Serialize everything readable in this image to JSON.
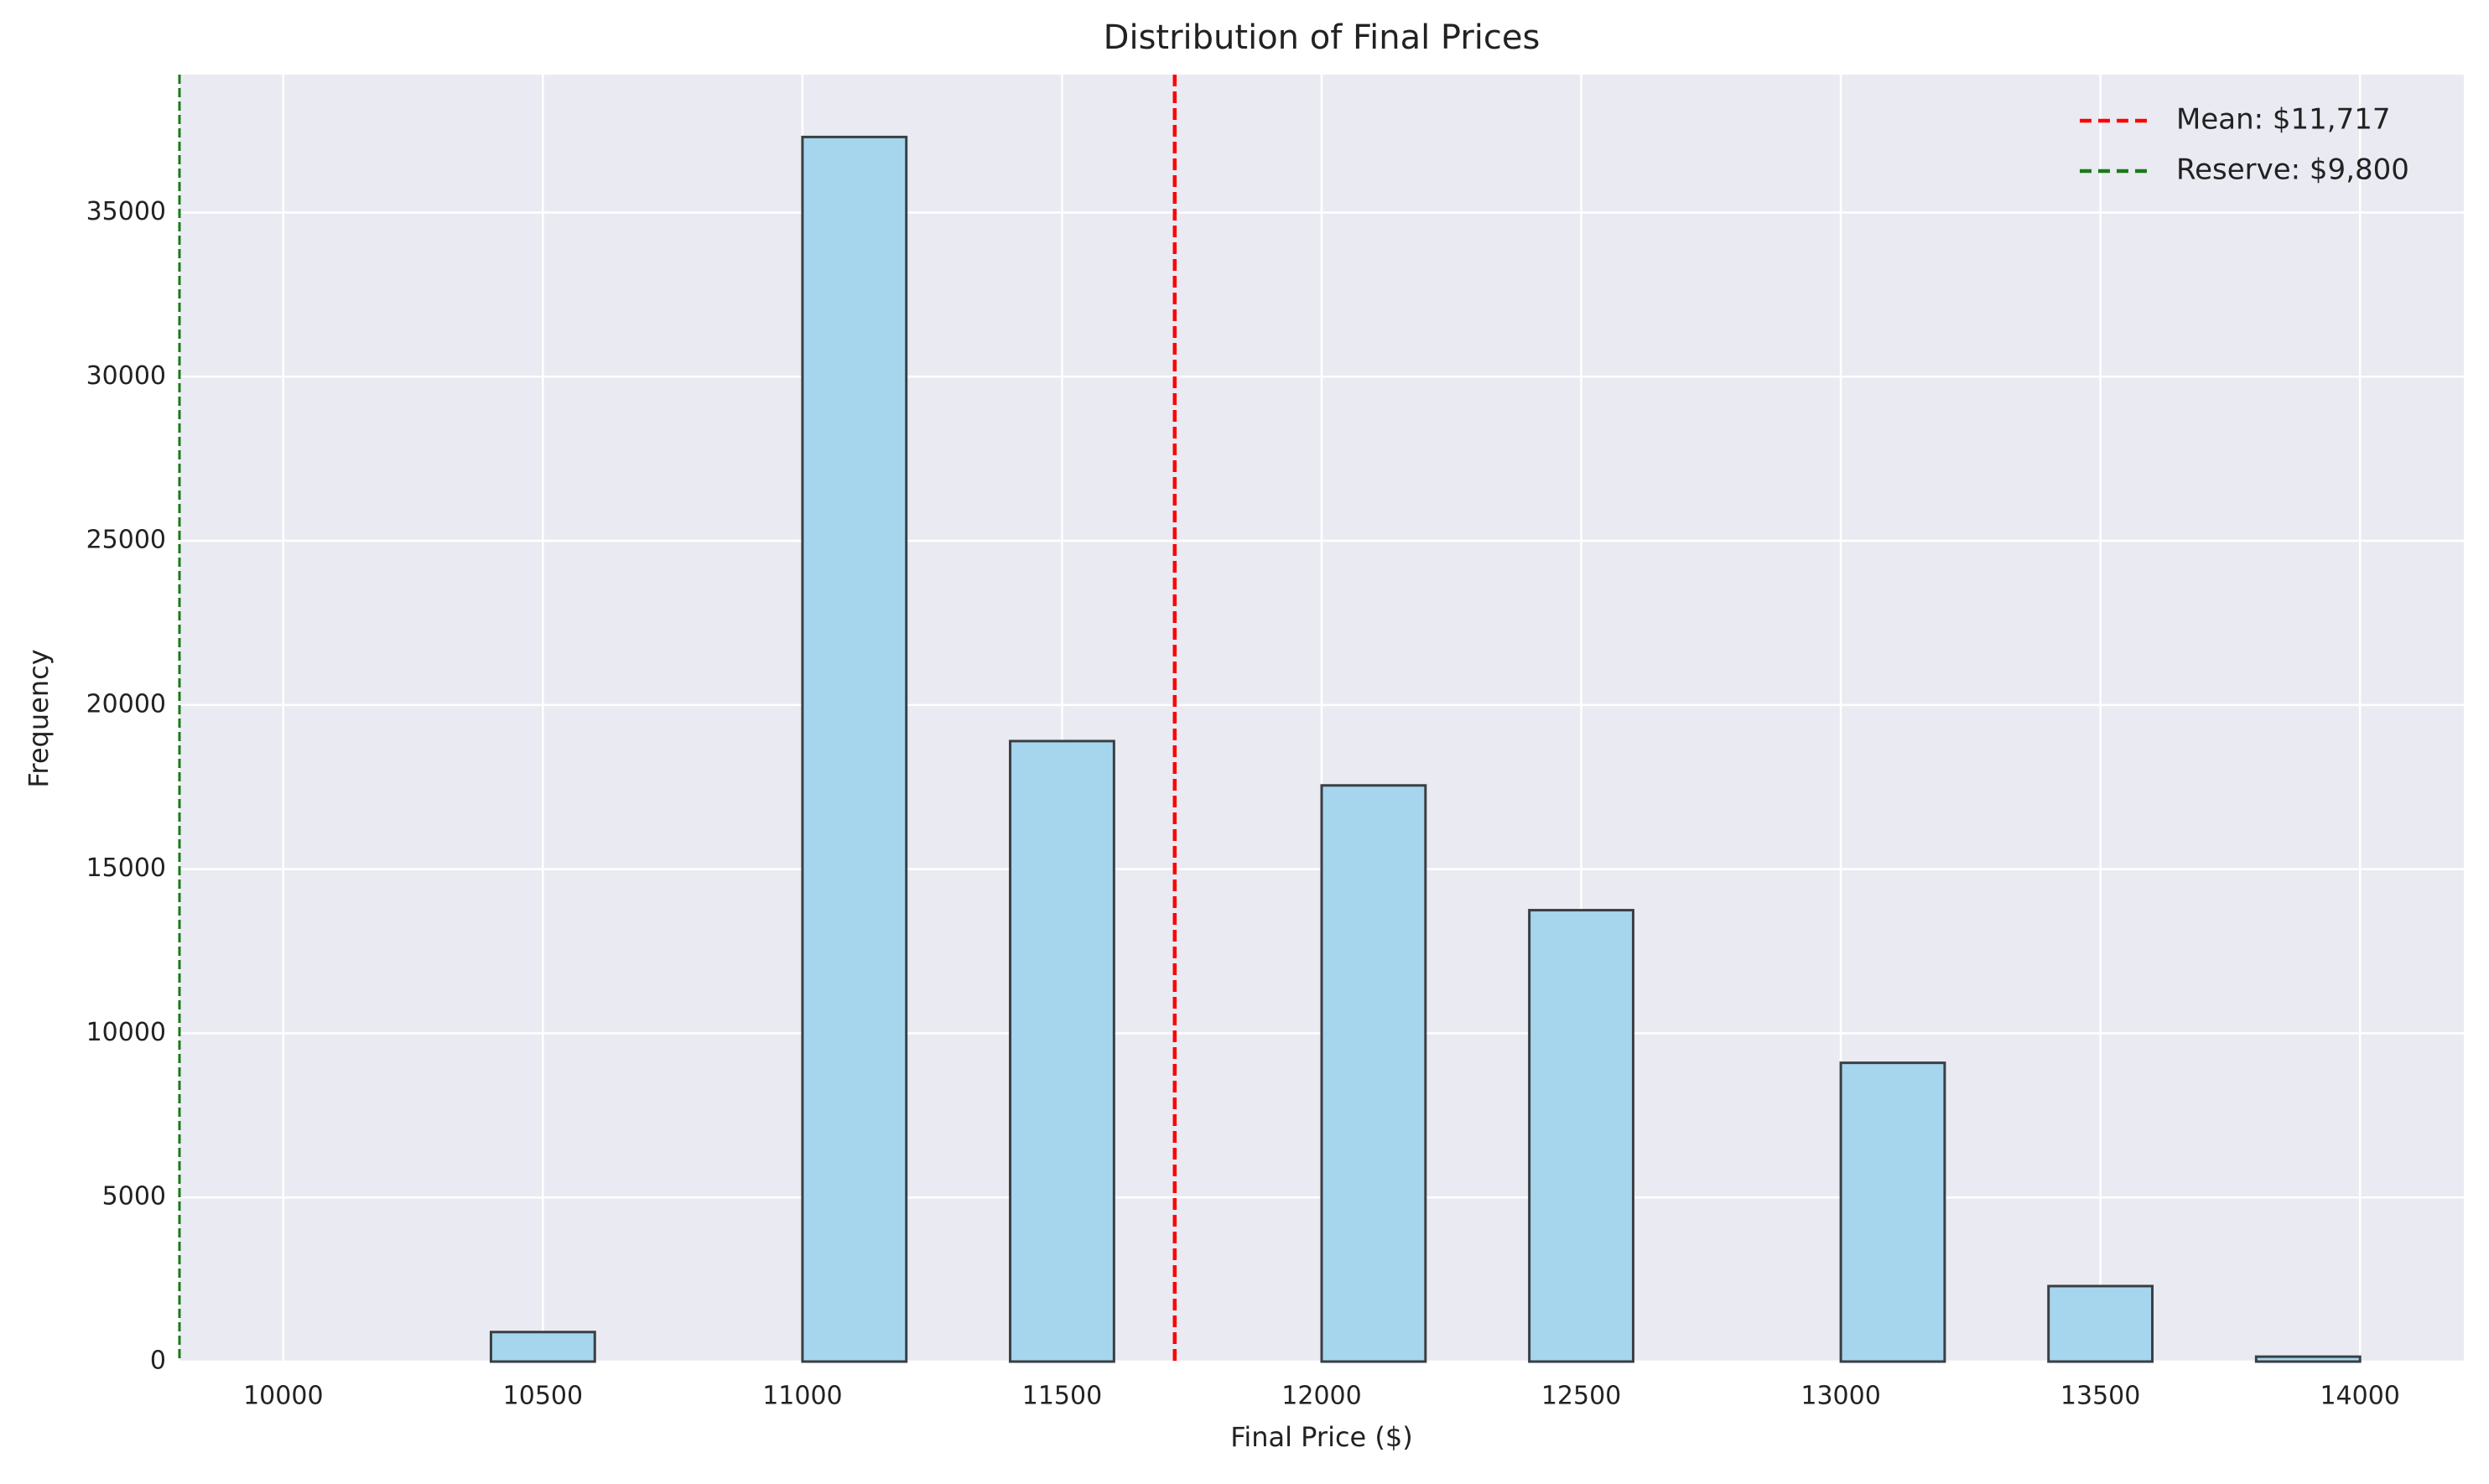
{
  "chart_data": {
    "type": "histogram",
    "title": "Distribution of Final Prices",
    "xlabel": "Final Price ($)",
    "ylabel": "Frequency",
    "bins": [
      10000,
      10200,
      10400,
      10600,
      10800,
      11000,
      11200,
      11400,
      11600,
      11800,
      12000,
      12200,
      12400,
      12600,
      12800,
      13000,
      13200,
      13400,
      13600,
      13800,
      14000
    ],
    "values": [
      0,
      0,
      900,
      0,
      0,
      37300,
      0,
      18900,
      0,
      0,
      17550,
      0,
      13750,
      0,
      0,
      9100,
      0,
      2300,
      0,
      150
    ],
    "color": "#a5d6ee",
    "edgecolor": "#3a3f42",
    "lines": [
      {
        "name": "Mean: $11,717",
        "value": 11717,
        "color": "#ff0000"
      },
      {
        "name": "Reserve: $9,800",
        "value": 9800,
        "color": "#1a7a1a"
      }
    ],
    "xlim": [
      9800,
      14200
    ],
    "ylim": [
      0,
      39200
    ],
    "xticks": [
      10000,
      10500,
      11000,
      11500,
      12000,
      12500,
      13000,
      13500,
      14000
    ],
    "yticks": [
      0,
      5000,
      10000,
      15000,
      20000,
      25000,
      30000,
      35000
    ],
    "grid": true,
    "legend": "upper right"
  }
}
